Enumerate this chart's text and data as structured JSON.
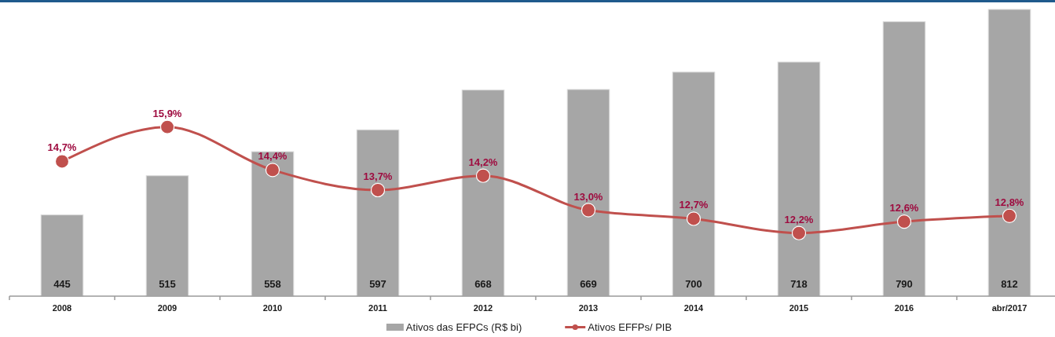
{
  "chart_data": {
    "type": "bar",
    "categories": [
      "2008",
      "2009",
      "2010",
      "2011",
      "2012",
      "2013",
      "2014",
      "2015",
      "2016",
      "abr/2017"
    ],
    "series": [
      {
        "name": "Ativos das EFPCs (R$ bi)",
        "color": "#a6a6a6",
        "values": [
          445,
          515,
          558,
          597,
          668,
          669,
          700,
          718,
          790,
          812
        ],
        "value_labels": [
          "445",
          "515",
          "558",
          "597",
          "668",
          "669",
          "700",
          "718",
          "790",
          "812"
        ]
      },
      {
        "name": "Ativos EFFPs/ PIB",
        "type": "line",
        "axis": "y2",
        "color": "#c0504d",
        "values": [
          14.7,
          15.9,
          14.4,
          13.7,
          14.2,
          13.0,
          12.7,
          12.2,
          12.6,
          12.8
        ],
        "value_labels": [
          "14,7%",
          "15,9%",
          "14,4%",
          "13,7%",
          "14,2%",
          "13,0%",
          "12,7%",
          "12,2%",
          "12,6%",
          "12,8%"
        ]
      }
    ],
    "ylim": [
      300,
      812
    ],
    "y2lim": [
      10,
      20
    ],
    "tick_labels": "x",
    "legend": "bottom",
    "marker": "circle"
  }
}
